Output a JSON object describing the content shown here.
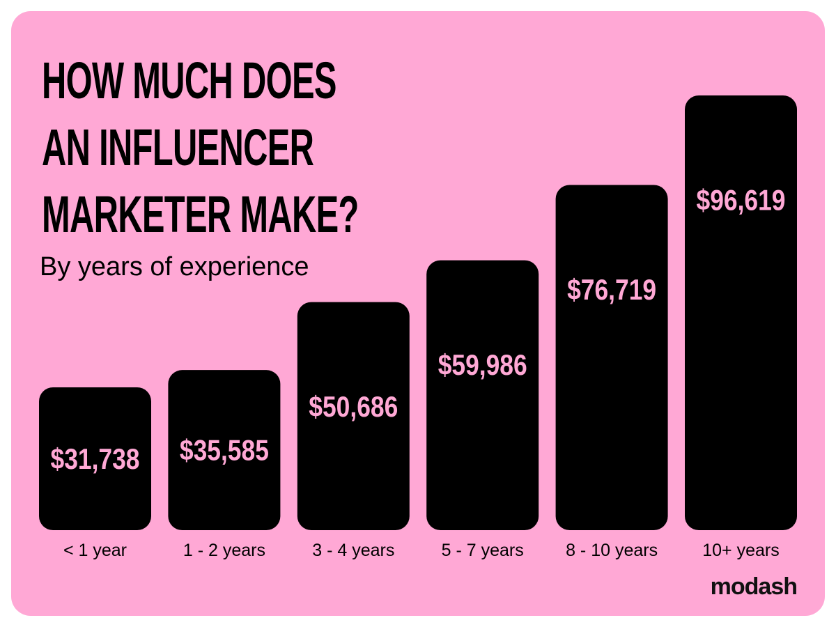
{
  "title_lines": [
    "HOW MUCH DOES",
    "AN INFLUENCER",
    "MARKETER MAKE?"
  ],
  "subtitle": "By years of experience",
  "brand": "modash",
  "colors": {
    "background": "#ffa8d5",
    "bar": "#000000",
    "bar_label": "#ffa8d5",
    "text": "#000000"
  },
  "chart_data": {
    "type": "bar",
    "title": "HOW MUCH DOES AN INFLUENCER MARKETER MAKE?",
    "subtitle": "By years of experience",
    "categories": [
      "< 1 year",
      "1 - 2 years",
      "3 - 4 years",
      "5 - 7 years",
      "8 - 10 years",
      "10+ years"
    ],
    "values": [
      31738,
      35585,
      50686,
      59986,
      76719,
      96619
    ],
    "value_labels": [
      "$31,738",
      "$35,585",
      "$50,686",
      "$59,986",
      "$76,719",
      "$96,619"
    ],
    "grid": false,
    "legend": "none"
  }
}
